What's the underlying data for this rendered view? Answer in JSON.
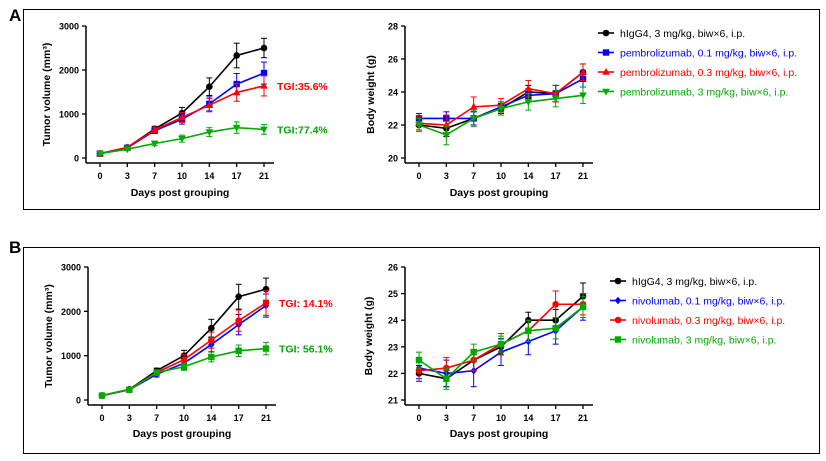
{
  "panels": [
    {
      "letter": "A"
    },
    {
      "letter": "B"
    }
  ],
  "chart_data": [
    {
      "type": "line",
      "panel": "A",
      "xlabel": "Days post grouping",
      "ylabel": "Tumor volume (mm³)",
      "x": [
        0,
        3,
        7,
        10,
        14,
        17,
        21
      ],
      "ylim": [
        0,
        3000
      ],
      "yticks": [
        0,
        1000,
        2000,
        3000
      ],
      "grid": false,
      "series": [
        {
          "color": "#000000",
          "marker": "circle",
          "values": [
            100,
            240,
            660,
            1020,
            1620,
            2330,
            2500
          ],
          "errors": [
            20,
            40,
            60,
            130,
            200,
            280,
            220
          ]
        },
        {
          "color": "#0000ff",
          "marker": "square",
          "values": [
            100,
            230,
            620,
            880,
            1230,
            1680,
            1930
          ],
          "errors": [
            20,
            40,
            60,
            110,
            160,
            240,
            250
          ]
        },
        {
          "color": "#ff0000",
          "marker": "triangle",
          "values": [
            100,
            240,
            640,
            920,
            1200,
            1490,
            1640
          ],
          "errors": [
            20,
            40,
            60,
            110,
            150,
            200,
            230
          ]
        },
        {
          "color": "#00aa00",
          "marker": "triangle-down",
          "values": [
            100,
            200,
            330,
            440,
            590,
            690,
            650
          ],
          "errors": [
            20,
            30,
            50,
            80,
            100,
            130,
            110
          ]
        }
      ],
      "annotations": [
        {
          "text": "TGI:35.6%",
          "color": "#ff0000",
          "y": 1640
        },
        {
          "text": "TGI:77.4%",
          "color": "#00aa00",
          "y": 650
        }
      ]
    },
    {
      "type": "line",
      "panel": "A",
      "xlabel": "Days post grouping",
      "ylabel": "Body weight (g)",
      "x": [
        0,
        3,
        7,
        10,
        14,
        17,
        21
      ],
      "ylim": [
        20,
        28
      ],
      "yticks": [
        20,
        22,
        24,
        26,
        28
      ],
      "grid": false,
      "legend": "right",
      "series": [
        {
          "name": "hIgG4, 3 mg/kg, biw×6, i.p.",
          "color": "#000000",
          "marker": "circle",
          "values": [
            22.0,
            21.8,
            22.4,
            23.0,
            24.0,
            23.9,
            25.2
          ],
          "errors": [
            0.3,
            0.5,
            0.4,
            0.3,
            0.4,
            0.5,
            0.5
          ]
        },
        {
          "name": "pembrolizumab, 0.1 mg/kg, biw×6, i.p.",
          "color": "#0000ff",
          "marker": "square",
          "values": [
            22.4,
            22.4,
            22.4,
            23.1,
            23.8,
            23.9,
            24.8
          ],
          "errors": [
            0.3,
            0.4,
            0.4,
            0.3,
            0.4,
            0.5,
            0.5
          ]
        },
        {
          "name": "pembrolizumab, 0.3 mg/kg, biw×6, i.p.",
          "color": "#ff0000",
          "marker": "triangle",
          "values": [
            22.1,
            22.0,
            23.1,
            23.2,
            24.2,
            23.9,
            25.2
          ],
          "errors": [
            0.4,
            0.6,
            0.6,
            0.4,
            0.5,
            0.5,
            0.5
          ]
        },
        {
          "name": "pembrolizumab, 3 mg/kg, biw×6, i.p.",
          "color": "#00aa00",
          "marker": "triangle-down",
          "values": [
            22.0,
            21.4,
            22.4,
            23.0,
            23.4,
            23.6,
            23.8
          ],
          "errors": [
            0.4,
            0.6,
            0.5,
            0.4,
            0.5,
            0.5,
            0.5
          ]
        }
      ]
    },
    {
      "type": "line",
      "panel": "B",
      "xlabel": "Days post grouping",
      "ylabel": "Tumor volume (mm³)",
      "x": [
        0,
        3,
        7,
        10,
        14,
        17,
        21
      ],
      "ylim": [
        0,
        3000
      ],
      "yticks": [
        0,
        1000,
        2000,
        3000
      ],
      "grid": false,
      "series": [
        {
          "color": "#000000",
          "marker": "circle",
          "values": [
            100,
            240,
            660,
            1000,
            1620,
            2330,
            2500
          ],
          "errors": [
            20,
            40,
            60,
            120,
            200,
            280,
            250
          ]
        },
        {
          "color": "#0000ff",
          "marker": "diamond",
          "values": [
            100,
            230,
            580,
            830,
            1250,
            1700,
            2130
          ],
          "errors": [
            20,
            40,
            60,
            110,
            160,
            230,
            260
          ]
        },
        {
          "color": "#ff0000",
          "marker": "circle",
          "values": [
            100,
            240,
            620,
            910,
            1350,
            1790,
            2190
          ],
          "errors": [
            20,
            40,
            60,
            110,
            180,
            240,
            280
          ]
        },
        {
          "color": "#00aa00",
          "marker": "square",
          "values": [
            100,
            230,
            620,
            750,
            970,
            1110,
            1160
          ],
          "errors": [
            20,
            30,
            50,
            80,
            110,
            130,
            140
          ]
        }
      ],
      "annotations": [
        {
          "text": "TGI: 14.1%",
          "color": "#ff0000",
          "y": 2190
        },
        {
          "text": "TGI: 56.1%",
          "color": "#00aa00",
          "y": 1160
        }
      ]
    },
    {
      "type": "line",
      "panel": "B",
      "xlabel": "Days post grouping",
      "ylabel": "Body weight (g)",
      "x": [
        0,
        3,
        7,
        10,
        14,
        17,
        21
      ],
      "ylim": [
        21,
        26
      ],
      "yticks": [
        21,
        22,
        23,
        24,
        25,
        26
      ],
      "grid": false,
      "legend": "right",
      "series": [
        {
          "name": "hIgG4, 3 mg/kg, biw×6, i.p.",
          "color": "#000000",
          "marker": "circle",
          "values": [
            22.0,
            21.8,
            22.5,
            23.0,
            24.0,
            24.0,
            24.9
          ],
          "errors": [
            0.3,
            0.3,
            0.4,
            0.3,
            0.3,
            0.4,
            0.5
          ]
        },
        {
          "name": "nivolumab, 0.1 mg/kg, biw×6, i.p.",
          "color": "#0000ff",
          "marker": "diamond",
          "values": [
            22.2,
            22.0,
            22.1,
            22.8,
            23.2,
            23.6,
            24.5
          ],
          "errors": [
            0.4,
            0.5,
            0.6,
            0.5,
            0.5,
            0.5,
            0.5
          ]
        },
        {
          "name": "nivolumab, 0.3 mg/kg, biw×6, i.p.",
          "color": "#ff0000",
          "marker": "circle",
          "values": [
            22.1,
            22.2,
            22.5,
            23.1,
            23.6,
            24.6,
            24.6
          ],
          "errors": [
            0.4,
            0.4,
            0.4,
            0.4,
            0.4,
            0.5,
            0.4
          ]
        },
        {
          "name": "nivolumab, 3 mg/kg, biw×6, i.p.",
          "color": "#00aa00",
          "marker": "square",
          "values": [
            22.5,
            21.8,
            22.8,
            23.1,
            23.6,
            23.7,
            24.5
          ],
          "errors": [
            0.3,
            0.4,
            0.3,
            0.3,
            0.4,
            0.4,
            0.4
          ]
        }
      ]
    }
  ]
}
